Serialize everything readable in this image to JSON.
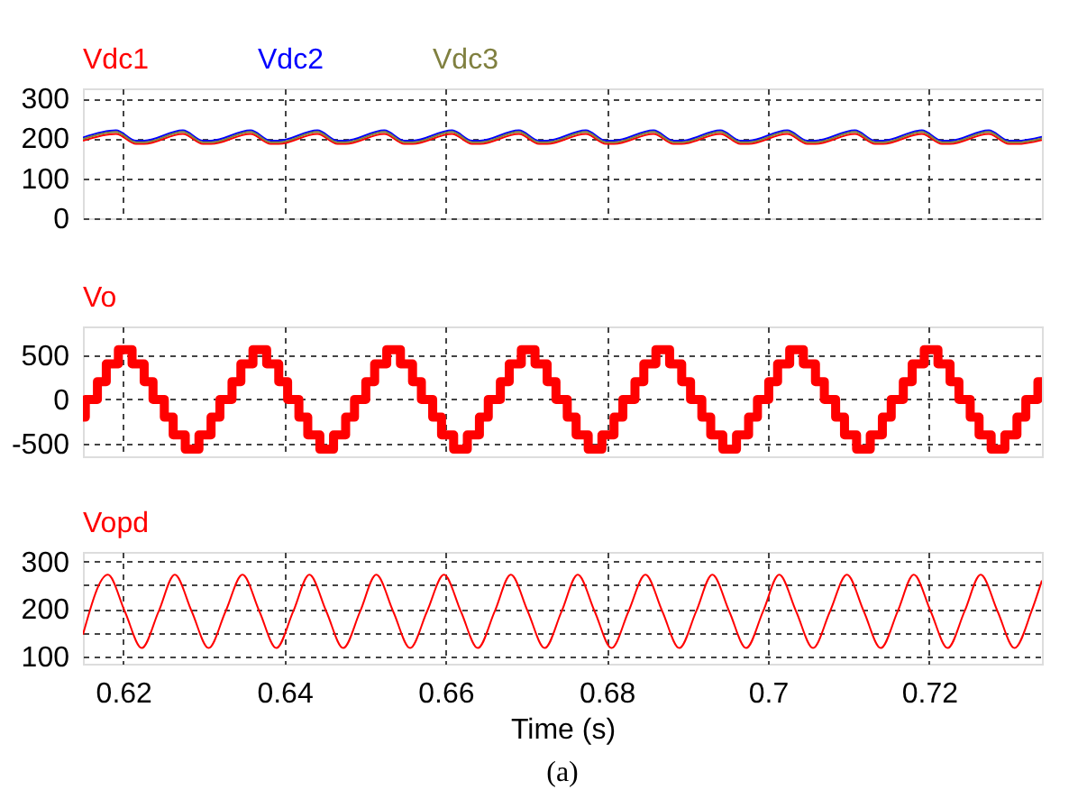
{
  "chart_data": [
    {
      "type": "line",
      "xlim": [
        0.615,
        0.734
      ],
      "xticks": [
        0.62,
        0.64,
        0.66,
        0.68,
        0.7,
        0.72
      ],
      "ylim": [
        0,
        325
      ],
      "yticks": [
        0,
        100,
        200,
        300
      ],
      "grid": true,
      "tick_labels": "y",
      "series": [
        {
          "name": "Vdc1",
          "color": "#ff0000",
          "x": [
            0.615,
            0.6191,
            0.6216,
            0.6226,
            0.6274,
            0.6299,
            0.6309,
            0.6358,
            0.6383,
            0.6393,
            0.6441,
            0.6466,
            0.6476,
            0.6524,
            0.6549,
            0.6559,
            0.6608,
            0.6633,
            0.6643,
            0.6691,
            0.6716,
            0.6726,
            0.6774,
            0.6799,
            0.6809,
            0.6858,
            0.6883,
            0.6893,
            0.6941,
            0.6966,
            0.6976,
            0.7024,
            0.7049,
            0.7059,
            0.7108,
            0.7133,
            0.7143,
            0.7191,
            0.7216,
            0.7226,
            0.7274,
            0.7299,
            0.7309,
            0.734
          ],
          "values": [
            194,
            211,
            186,
            186,
            211,
            186,
            186,
            211,
            186,
            186,
            211,
            186,
            186,
            211,
            186,
            186,
            211,
            186,
            186,
            211,
            186,
            186,
            211,
            186,
            186,
            211,
            186,
            186,
            211,
            186,
            186,
            211,
            186,
            186,
            211,
            186,
            186,
            211,
            186,
            186,
            211,
            186,
            186,
            196
          ]
        },
        {
          "name": "Vdc2",
          "color": "#0000ff",
          "x": [
            0.615,
            0.6191,
            0.6216,
            0.6226,
            0.6274,
            0.6299,
            0.6309,
            0.6358,
            0.6383,
            0.6393,
            0.6441,
            0.6466,
            0.6476,
            0.6524,
            0.6549,
            0.6559,
            0.6608,
            0.6633,
            0.6643,
            0.6691,
            0.6716,
            0.6726,
            0.6774,
            0.6799,
            0.6809,
            0.6858,
            0.6883,
            0.6893,
            0.6941,
            0.6966,
            0.6976,
            0.7024,
            0.7049,
            0.7059,
            0.7108,
            0.7133,
            0.7143,
            0.7191,
            0.7216,
            0.7226,
            0.7274,
            0.7299,
            0.7309,
            0.734
          ],
          "values": [
            202,
            220,
            194,
            194,
            220,
            194,
            194,
            220,
            194,
            194,
            220,
            194,
            194,
            220,
            194,
            194,
            220,
            194,
            194,
            220,
            194,
            194,
            220,
            194,
            194,
            220,
            194,
            194,
            220,
            194,
            194,
            220,
            194,
            194,
            220,
            194,
            194,
            220,
            194,
            194,
            220,
            194,
            194,
            204
          ]
        },
        {
          "name": "Vdc3",
          "color": "#808040",
          "x": [
            0.615,
            0.6191,
            0.6216,
            0.6226,
            0.6274,
            0.6299,
            0.6309,
            0.6358,
            0.6383,
            0.6393,
            0.6441,
            0.6466,
            0.6476,
            0.6524,
            0.6549,
            0.6559,
            0.6608,
            0.6633,
            0.6643,
            0.6691,
            0.6716,
            0.6726,
            0.6774,
            0.6799,
            0.6809,
            0.6858,
            0.6883,
            0.6893,
            0.6941,
            0.6966,
            0.6976,
            0.7024,
            0.7049,
            0.7059,
            0.7108,
            0.7133,
            0.7143,
            0.7191,
            0.7216,
            0.7226,
            0.7274,
            0.7299,
            0.7309,
            0.734
          ],
          "values": [
            198,
            216,
            190,
            190,
            216,
            190,
            190,
            216,
            190,
            190,
            216,
            190,
            190,
            216,
            190,
            190,
            216,
            190,
            190,
            216,
            190,
            190,
            216,
            190,
            190,
            216,
            190,
            190,
            216,
            190,
            190,
            216,
            190,
            190,
            216,
            190,
            190,
            216,
            190,
            190,
            216,
            190,
            190,
            200
          ]
        }
      ]
    },
    {
      "type": "line",
      "xlim": [
        0.615,
        0.734
      ],
      "xticks": [
        0.62,
        0.64,
        0.66,
        0.68,
        0.7,
        0.72
      ],
      "ylim": [
        -640,
        820
      ],
      "yticks": [
        -500,
        0,
        500
      ],
      "grid": true,
      "tick_labels": "y",
      "series": [
        {
          "name": "Vo",
          "color": "#ff0000",
          "type": "step",
          "x": [
            0.615,
            0.6153,
            0.6168,
            0.6179,
            0.6194,
            0.6211,
            0.6226,
            0.6237,
            0.6251,
            0.6262,
            0.6277,
            0.6294,
            0.6309,
            0.632,
            0.6335,
            0.6346,
            0.6361,
            0.6378,
            0.6393,
            0.6404,
            0.6418,
            0.6429,
            0.6444,
            0.6461,
            0.6476,
            0.6487,
            0.6501,
            0.6512,
            0.6527,
            0.6544,
            0.6559,
            0.657,
            0.6584,
            0.6595,
            0.661,
            0.6627,
            0.6642,
            0.6653,
            0.6668,
            0.6679,
            0.6694,
            0.6711,
            0.6726,
            0.6737,
            0.6751,
            0.6762,
            0.6777,
            0.6794,
            0.6809,
            0.682,
            0.6835,
            0.6846,
            0.6861,
            0.6878,
            0.6893,
            0.6904,
            0.6918,
            0.6929,
            0.6944,
            0.6961,
            0.6976,
            0.6987,
            0.7001,
            0.7012,
            0.7027,
            0.7044,
            0.7059,
            0.707,
            0.7084,
            0.7095,
            0.711,
            0.7127,
            0.7142,
            0.7153,
            0.7168,
            0.7179,
            0.7194,
            0.7211,
            0.7226,
            0.7237,
            0.7251,
            0.7262,
            0.7277,
            0.7294,
            0.7309,
            0.732,
            0.7335,
            0.734
          ],
          "values": [
            -200,
            0,
            200,
            400,
            560,
            400,
            200,
            0,
            -200,
            -400,
            -560,
            -400,
            -200,
            0,
            200,
            400,
            560,
            400,
            200,
            0,
            -200,
            -400,
            -560,
            -400,
            -200,
            0,
            200,
            400,
            560,
            400,
            200,
            0,
            -200,
            -400,
            -560,
            -400,
            -200,
            0,
            200,
            400,
            560,
            400,
            200,
            0,
            -200,
            -400,
            -560,
            -400,
            -200,
            0,
            200,
            400,
            560,
            400,
            200,
            0,
            -200,
            -400,
            -560,
            -400,
            -200,
            0,
            200,
            400,
            560,
            400,
            200,
            0,
            -200,
            -400,
            -560,
            -400,
            -200,
            0,
            200,
            400,
            560,
            400,
            200,
            0,
            -200,
            -400,
            -560,
            -400,
            -200,
            0,
            200,
            200
          ]
        }
      ]
    },
    {
      "type": "line",
      "xlim": [
        0.615,
        0.734
      ],
      "xticks": [
        0.62,
        0.64,
        0.66,
        0.68,
        0.7,
        0.72
      ],
      "ylim": [
        85,
        320
      ],
      "yticks": [
        100,
        {
          "value": 150,
          "label": null
        },
        200,
        {
          "value": 250,
          "label": null
        },
        300
      ],
      "grid": true,
      "xlabel": "Time (s)",
      "annotations": [
        "(a)"
      ],
      "series": [
        {
          "name": "Vopd",
          "color": "#ff0000",
          "x": [
            0.615,
            0.6181,
            0.6202,
            0.6223,
            0.6244,
            0.6264,
            0.6285,
            0.6306,
            0.6327,
            0.6348,
            0.6369,
            0.639,
            0.6411,
            0.6431,
            0.6452,
            0.6473,
            0.6494,
            0.6514,
            0.6535,
            0.6556,
            0.6577,
            0.6598,
            0.6619,
            0.664,
            0.6661,
            0.6681,
            0.6702,
            0.6723,
            0.6744,
            0.6764,
            0.6785,
            0.6806,
            0.6827,
            0.6848,
            0.6869,
            0.689,
            0.6911,
            0.6931,
            0.6952,
            0.6973,
            0.6994,
            0.7014,
            0.7035,
            0.7056,
            0.7077,
            0.7098,
            0.7119,
            0.714,
            0.7161,
            0.7181,
            0.7202,
            0.7223,
            0.7244,
            0.7264,
            0.7285,
            0.7306,
            0.7327,
            0.734
          ],
          "values": [
            146,
            272,
            195,
            118,
            195,
            272,
            195,
            118,
            195,
            272,
            195,
            118,
            195,
            272,
            195,
            118,
            195,
            272,
            195,
            118,
            195,
            272,
            195,
            118,
            195,
            272,
            195,
            118,
            195,
            272,
            195,
            118,
            195,
            272,
            195,
            118,
            195,
            272,
            195,
            118,
            195,
            272,
            195,
            118,
            195,
            272,
            195,
            118,
            195,
            272,
            195,
            118,
            195,
            272,
            195,
            118,
            195,
            260
          ]
        }
      ]
    }
  ]
}
